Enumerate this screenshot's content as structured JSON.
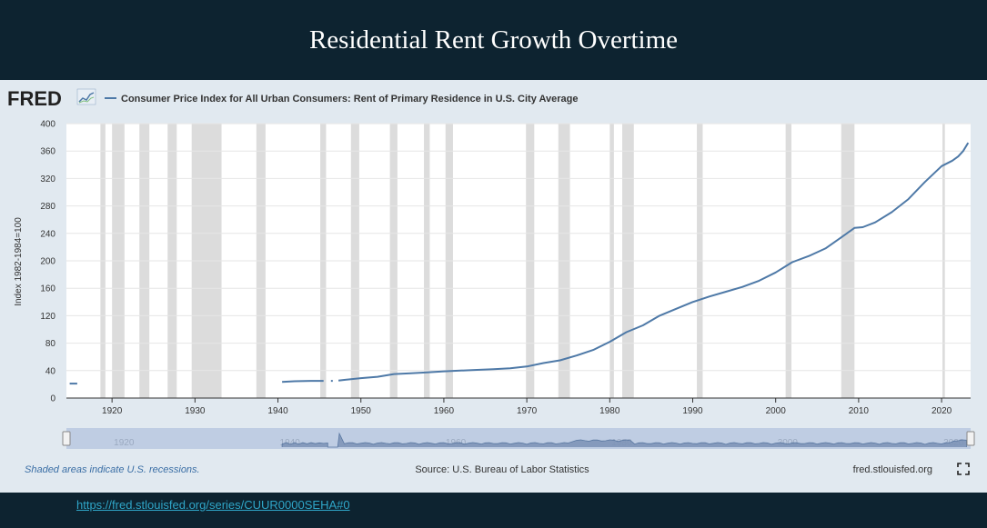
{
  "slide": {
    "title": "Residential Rent Growth Overtime",
    "link": "https://fred.stlouisfed.org/series/CUUR0000SEHA#0"
  },
  "fred": {
    "logo": "FRED",
    "logo_icon": "line-graph-icon",
    "recessions_note": "Shaded areas indicate U.S. recessions.",
    "source": "Source: U.S. Bureau of Labor Statistics",
    "site": "fred.stlouisfed.org",
    "fullscreen_icon": "fullscreen-icon",
    "colors": {
      "line": "#4e79a7",
      "recession": "#dcdcdc",
      "panel": "#e1e9f0",
      "navigator": "#b9c8e0"
    }
  },
  "chart_data": {
    "type": "line",
    "title": "",
    "xlabel": "",
    "ylabel": "Index 1982-1984=100",
    "xlim": [
      1914.5,
      2023.5
    ],
    "ylim": [
      0,
      400
    ],
    "grid": true,
    "legend": "top-left",
    "yticks": [
      0,
      40,
      80,
      120,
      160,
      200,
      240,
      280,
      320,
      360,
      400
    ],
    "xticks": [
      1920,
      1930,
      1940,
      1950,
      1960,
      1970,
      1980,
      1990,
      2000,
      2010,
      2020
    ],
    "recessions": [
      [
        1918.6,
        1919.2
      ],
      [
        1920.0,
        1921.5
      ],
      [
        1923.3,
        1924.5
      ],
      [
        1926.7,
        1927.8
      ],
      [
        1929.6,
        1933.2
      ],
      [
        1937.4,
        1938.5
      ],
      [
        1945.1,
        1945.8
      ],
      [
        1948.8,
        1949.8
      ],
      [
        1953.5,
        1954.4
      ],
      [
        1957.6,
        1958.3
      ],
      [
        1960.2,
        1961.1
      ],
      [
        1969.9,
        1970.9
      ],
      [
        1973.8,
        1975.2
      ],
      [
        1980.0,
        1980.5
      ],
      [
        1981.5,
        1982.9
      ],
      [
        1990.5,
        1991.2
      ],
      [
        2001.2,
        2001.9
      ],
      [
        2007.9,
        2009.5
      ],
      [
        2020.1,
        2020.4
      ]
    ],
    "series": [
      {
        "name": "Consumer Price Index for All Urban Consumers: Rent of Primary Residence in U.S. City Average",
        "segments": [
          [
            [
              1914.9,
              21
            ],
            [
              1915.8,
              21
            ]
          ],
          [
            [
              1940.5,
              23.5
            ],
            [
              1942,
              24.5
            ],
            [
              1944,
              25
            ],
            [
              1945.5,
              25
            ]
          ],
          [
            [
              1946.5,
              25
            ]
          ],
          [
            [
              1947.3,
              25.5
            ],
            [
              1948,
              26.5
            ],
            [
              1950,
              29
            ],
            [
              1952,
              31
            ],
            [
              1954,
              35
            ],
            [
              1956,
              36
            ],
            [
              1958,
              37.5
            ],
            [
              1960,
              39
            ],
            [
              1962,
              40
            ],
            [
              1964,
              41
            ],
            [
              1966,
              42
            ],
            [
              1968,
              43.5
            ],
            [
              1970,
              46
            ],
            [
              1972,
              51
            ],
            [
              1974,
              55
            ],
            [
              1976,
              62
            ],
            [
              1978,
              70
            ],
            [
              1980,
              82
            ],
            [
              1982,
              96
            ],
            [
              1984,
              106
            ],
            [
              1986,
              120
            ],
            [
              1988,
              130
            ],
            [
              1990,
              140
            ],
            [
              1992,
              148
            ],
            [
              1994,
              155
            ],
            [
              1996,
              162
            ],
            [
              1998,
              171
            ],
            [
              2000,
              183
            ],
            [
              2002,
              198
            ],
            [
              2004,
              207
            ],
            [
              2006,
              218
            ],
            [
              2008,
              235
            ],
            [
              2009.5,
              248
            ],
            [
              2010.5,
              249
            ],
            [
              2012,
              256
            ],
            [
              2014,
              271
            ],
            [
              2016,
              290
            ],
            [
              2018,
              315
            ],
            [
              2020,
              338
            ],
            [
              2021.3,
              346
            ],
            [
              2022,
              352
            ],
            [
              2022.6,
              360
            ],
            [
              2023.2,
              372
            ]
          ]
        ]
      }
    ],
    "navigator": {
      "labels": [
        "1920",
        "1940",
        "1960",
        "1980",
        "2000",
        "2020"
      ]
    }
  }
}
